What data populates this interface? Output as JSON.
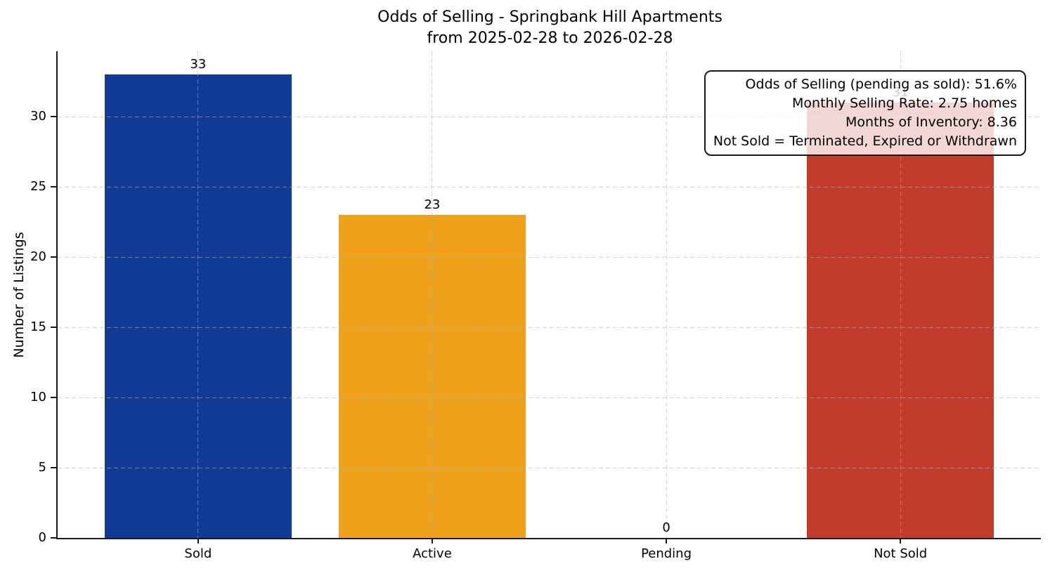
{
  "title": {
    "line1": "Odds of Selling - Springbank Hill Apartments",
    "line2": "from 2025-02-28 to 2026-02-28"
  },
  "annotation": {
    "lines": [
      "Odds of Selling (pending as sold): 51.6%",
      "Monthly Selling Rate: 2.75 homes",
      "Months of Inventory: 8.36",
      "Not Sold = Terminated, Expired or Withdrawn"
    ]
  },
  "chart_data": {
    "type": "bar",
    "title": "Odds of Selling - Springbank Hill Apartments from 2025-02-28 to 2026-02-28",
    "categories": [
      "Sold",
      "Active",
      "Pending",
      "Not Sold"
    ],
    "values": [
      33,
      23,
      0,
      31
    ],
    "value_labels": [
      "33",
      "23",
      "0",
      "31"
    ],
    "bar_colors": [
      "#113a94",
      "#f0a11a",
      null,
      "#c23b2b"
    ],
    "xlabel": "",
    "ylabel": "Number of Listings",
    "yticks": [
      0,
      5,
      10,
      15,
      20,
      25,
      30
    ],
    "ylim": [
      0,
      34.65
    ],
    "xlim": [
      -0.6,
      3.6
    ],
    "bar_width": 0.8,
    "grid": "dashed, drawn above bars",
    "legend": "none",
    "colors": {
      "spine": "#1a1a1a",
      "grid": "#b0b0b0",
      "text": "#000000",
      "annotation_background": "rgba(255,255,255,0.8)"
    }
  }
}
